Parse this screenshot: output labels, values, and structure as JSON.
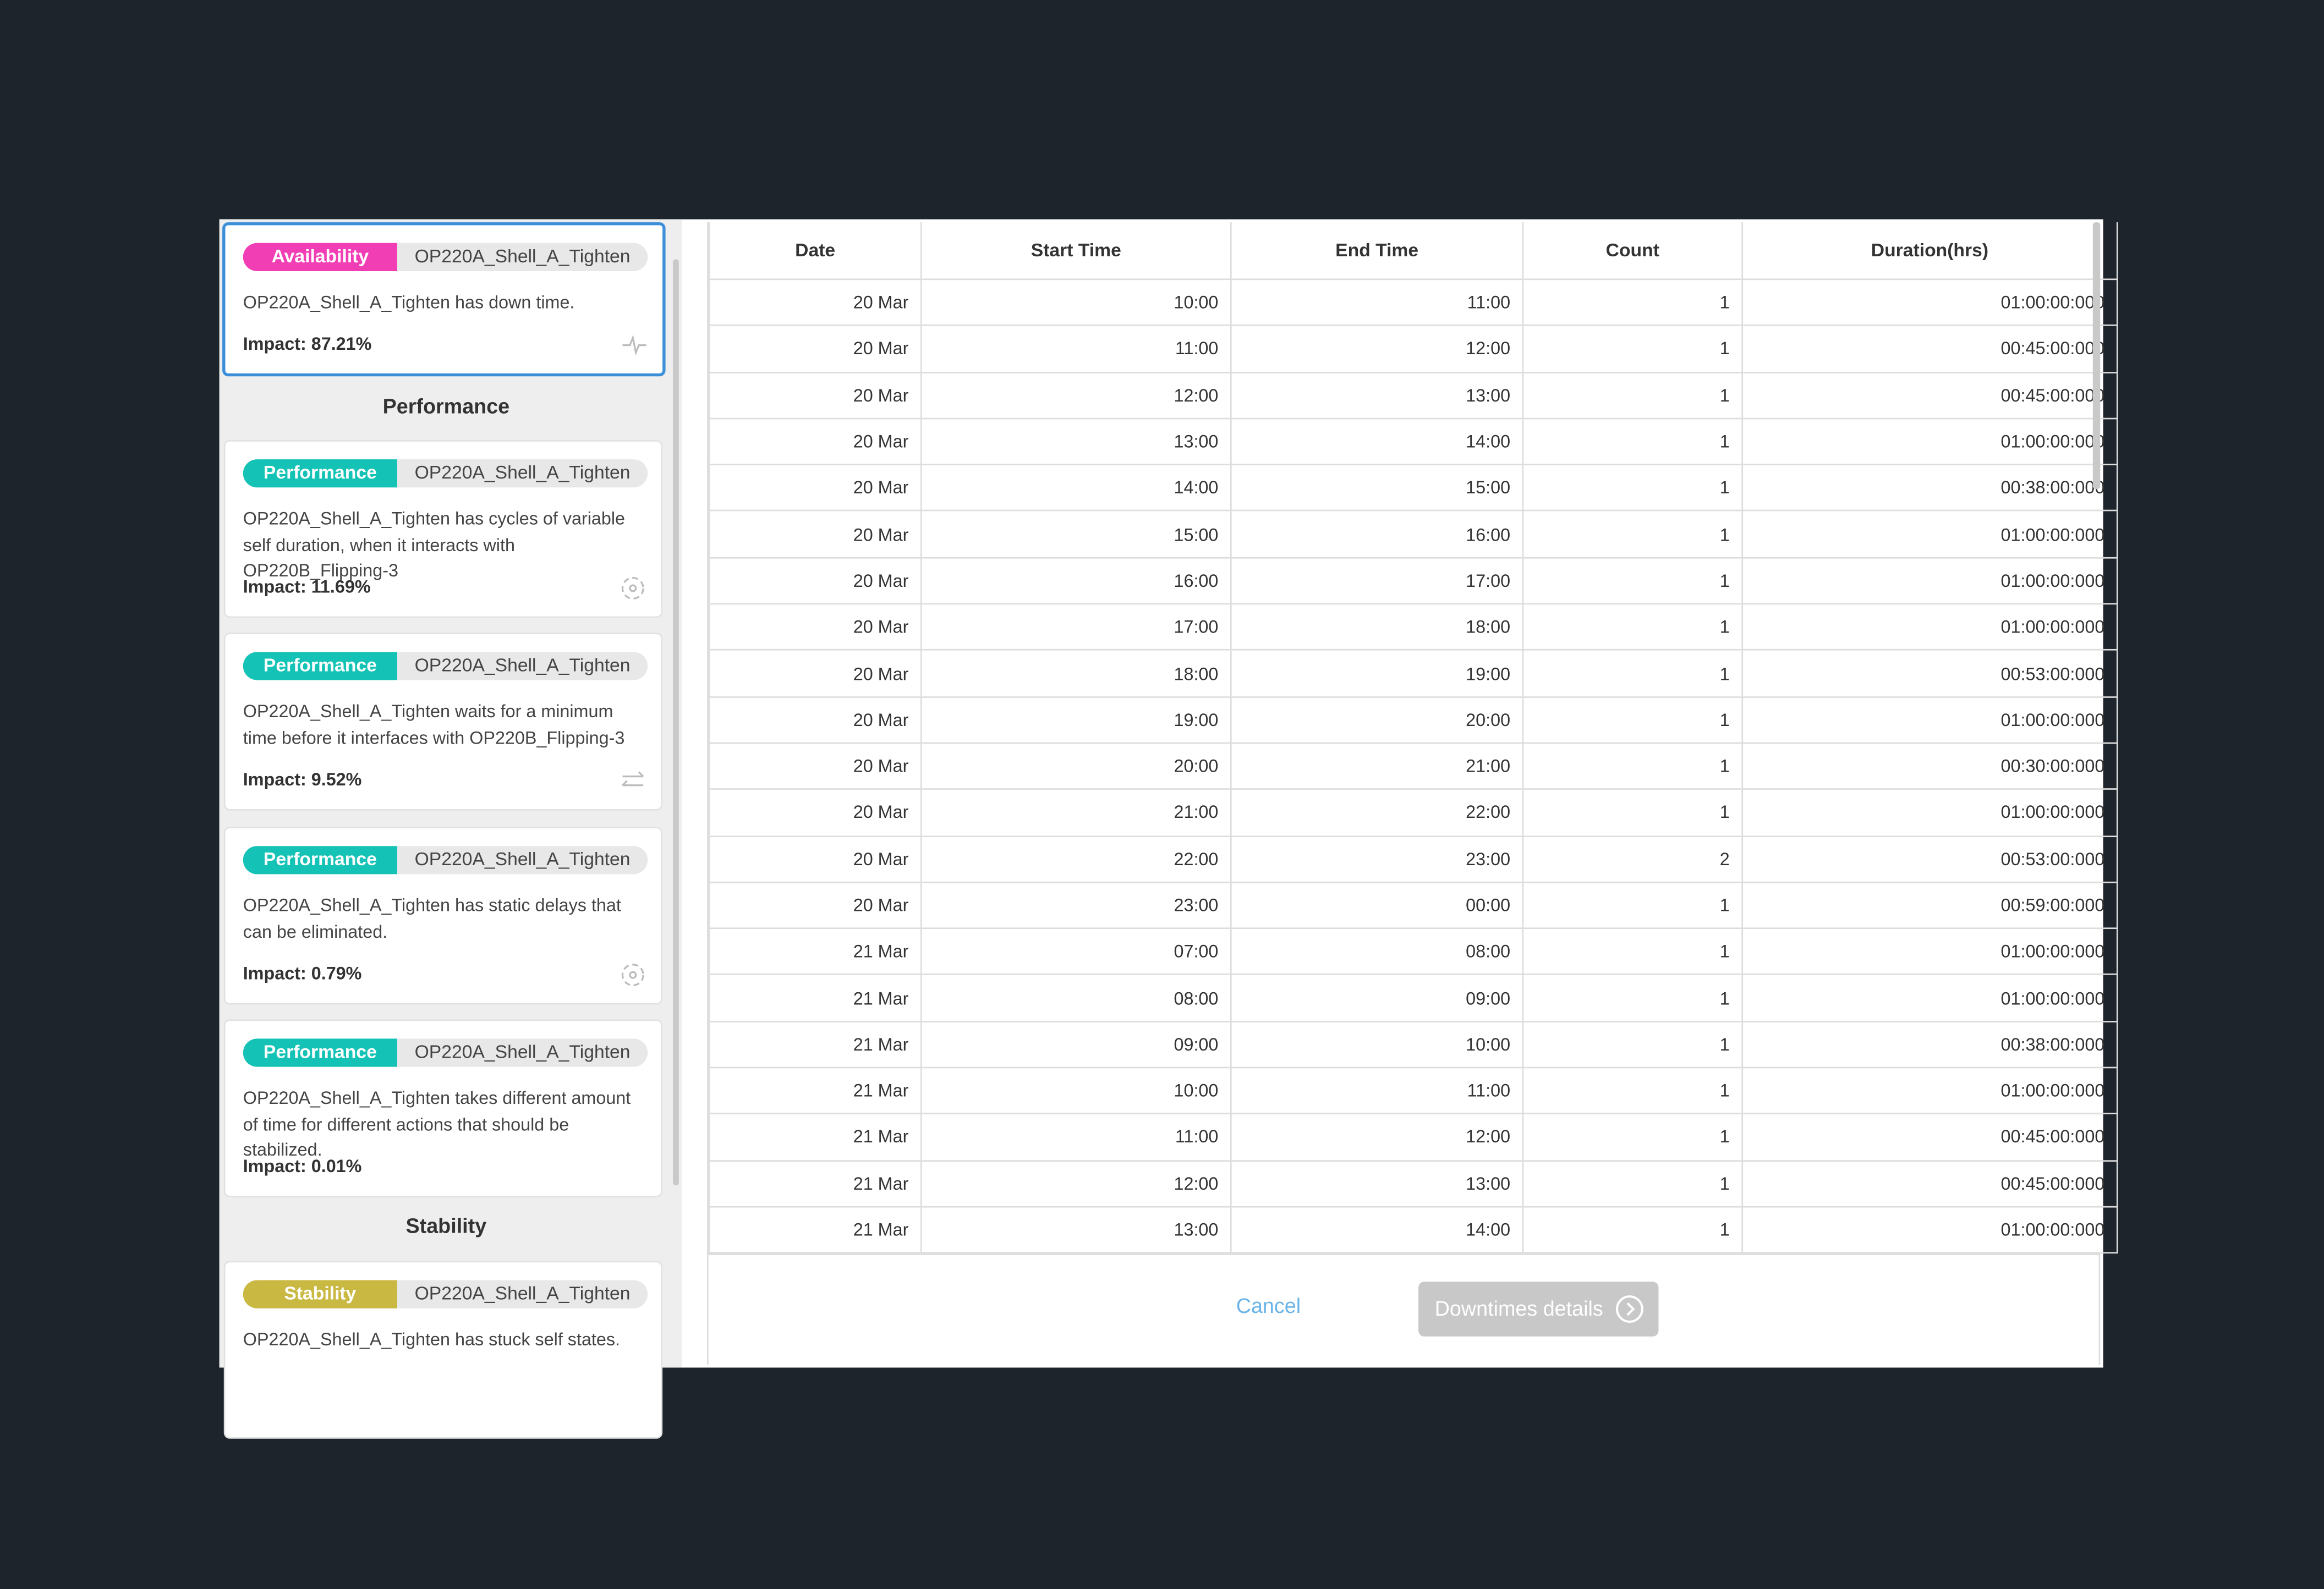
{
  "sidebar": {
    "headings": [
      "Performance",
      "Stability"
    ],
    "cards": [
      {
        "tag": "Availability",
        "name": "OP220A_Shell_A_Tighten",
        "description": "OP220A_Shell_A_Tighten has down time.",
        "impact": "Impact: 87.21%"
      },
      {
        "tag": "Performance",
        "name": "OP220A_Shell_A_Tighten",
        "description": "OP220A_Shell_A_Tighten has cycles of variable self duration, when it interacts with OP220B_Flipping-3",
        "impact": "Impact: 11.69%"
      },
      {
        "tag": "Performance",
        "name": "OP220A_Shell_A_Tighten",
        "description": "OP220A_Shell_A_Tighten waits for a minimum time before it interfaces with OP220B_Flipping-3",
        "impact": "Impact: 9.52%"
      },
      {
        "tag": "Performance",
        "name": "OP220A_Shell_A_Tighten",
        "description": "OP220A_Shell_A_Tighten has static delays that can be eliminated.",
        "impact": "Impact: 0.79%"
      },
      {
        "tag": "Performance",
        "name": "OP220A_Shell_A_Tighten",
        "description": "OP220A_Shell_A_Tighten takes different amount of time for different actions that should be stabilized.",
        "impact": "Impact: 0.01%"
      },
      {
        "tag": "Stability",
        "name": "OP220A_Shell_A_Tighten",
        "description": "OP220A_Shell_A_Tighten has stuck self states."
      }
    ]
  },
  "table": {
    "columns": [
      "Date",
      "Start Time",
      "End Time",
      "Count",
      "Duration(hrs)"
    ],
    "rows": [
      [
        "20 Mar",
        "10:00",
        "11:00",
        1,
        "01:00:00:000"
      ],
      [
        "20 Mar",
        "11:00",
        "12:00",
        1,
        "00:45:00:000"
      ],
      [
        "20 Mar",
        "12:00",
        "13:00",
        1,
        "00:45:00:000"
      ],
      [
        "20 Mar",
        "13:00",
        "14:00",
        1,
        "01:00:00:000"
      ],
      [
        "20 Mar",
        "14:00",
        "15:00",
        1,
        "00:38:00:000"
      ],
      [
        "20 Mar",
        "15:00",
        "16:00",
        1,
        "01:00:00:000"
      ],
      [
        "20 Mar",
        "16:00",
        "17:00",
        1,
        "01:00:00:000"
      ],
      [
        "20 Mar",
        "17:00",
        "18:00",
        1,
        "01:00:00:000"
      ],
      [
        "20 Mar",
        "18:00",
        "19:00",
        1,
        "00:53:00:000"
      ],
      [
        "20 Mar",
        "19:00",
        "20:00",
        1,
        "01:00:00:000"
      ],
      [
        "20 Mar",
        "20:00",
        "21:00",
        1,
        "00:30:00:000"
      ],
      [
        "20 Mar",
        "21:00",
        "22:00",
        1,
        "01:00:00:000"
      ],
      [
        "20 Mar",
        "22:00",
        "23:00",
        2,
        "00:53:00:000"
      ],
      [
        "20 Mar",
        "23:00",
        "00:00",
        1,
        "00:59:00:000"
      ],
      [
        "21 Mar",
        "07:00",
        "08:00",
        1,
        "01:00:00:000"
      ],
      [
        "21 Mar",
        "08:00",
        "09:00",
        1,
        "01:00:00:000"
      ],
      [
        "21 Mar",
        "09:00",
        "10:00",
        1,
        "00:38:00:000"
      ],
      [
        "21 Mar",
        "10:00",
        "11:00",
        1,
        "01:00:00:000"
      ],
      [
        "21 Mar",
        "11:00",
        "12:00",
        1,
        "00:45:00:000"
      ],
      [
        "21 Mar",
        "12:00",
        "13:00",
        1,
        "00:45:00:000"
      ],
      [
        "21 Mar",
        "13:00",
        "14:00",
        1,
        "01:00:00:000"
      ]
    ]
  },
  "footer": {
    "cancel": "Cancel",
    "details": "Downtimes details"
  }
}
